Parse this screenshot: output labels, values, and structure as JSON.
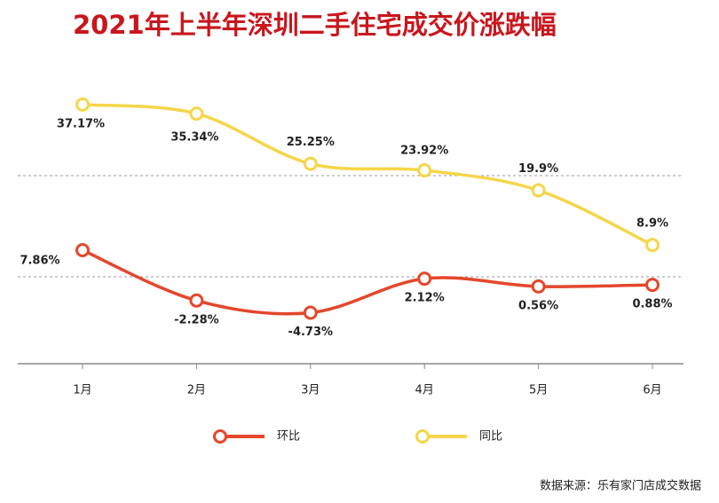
{
  "chart_data": {
    "type": "line",
    "title": "2021年上半年深圳二手住宅成交价涨跌幅",
    "categories": [
      "1月",
      "2月",
      "3月",
      "4月",
      "5月",
      "6月"
    ],
    "series": [
      {
        "name": "环比",
        "color": "#e4472c",
        "values": [
          7.86,
          -2.28,
          -4.73,
          2.12,
          0.56,
          0.88
        ],
        "value_labels": [
          "7.86%",
          "-2.28%",
          "-4.73%",
          "2.12%",
          "0.56%",
          "0.88%"
        ]
      },
      {
        "name": "同比",
        "color": "#f5d64a",
        "values": [
          37.17,
          35.34,
          25.25,
          23.92,
          19.9,
          8.9
        ],
        "value_labels": [
          "37.17%",
          "35.34%",
          "25.25%",
          "23.92%",
          "19.9%",
          "8.9%"
        ]
      }
    ],
    "ylim": [
      -15,
      45
    ],
    "source": "数据来源：乐有家门店成交数据"
  }
}
